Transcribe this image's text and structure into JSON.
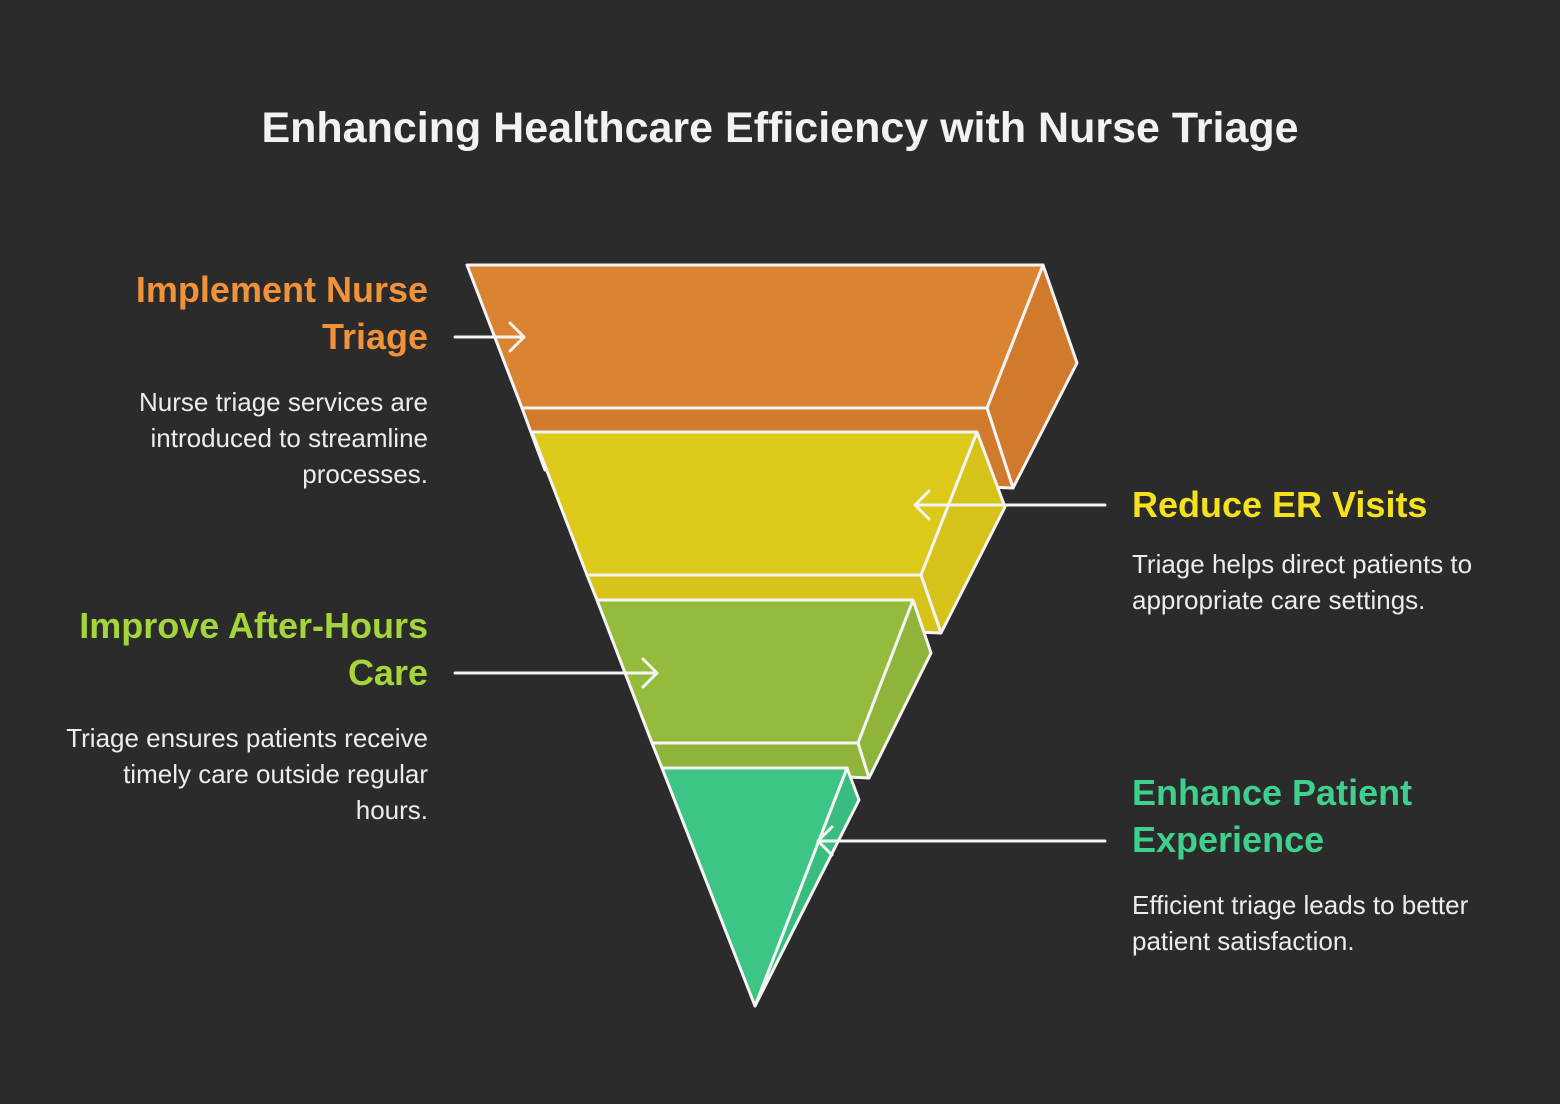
{
  "title": "Enhancing Healthcare Efficiency with Nurse Triage",
  "stages": [
    {
      "title": "Implement Nurse Triage",
      "description": "Nurse triage services are introduced to streamline processes."
    },
    {
      "title": "Reduce ER Visits",
      "description": "Triage helps direct patients to appropriate care settings."
    },
    {
      "title": "Improve After-Hours Care",
      "description": "Triage ensures patients receive timely care outside regular hours."
    },
    {
      "title": "Enhance Patient Experience",
      "description": "Efficient triage leads to better patient satisfaction."
    }
  ]
}
